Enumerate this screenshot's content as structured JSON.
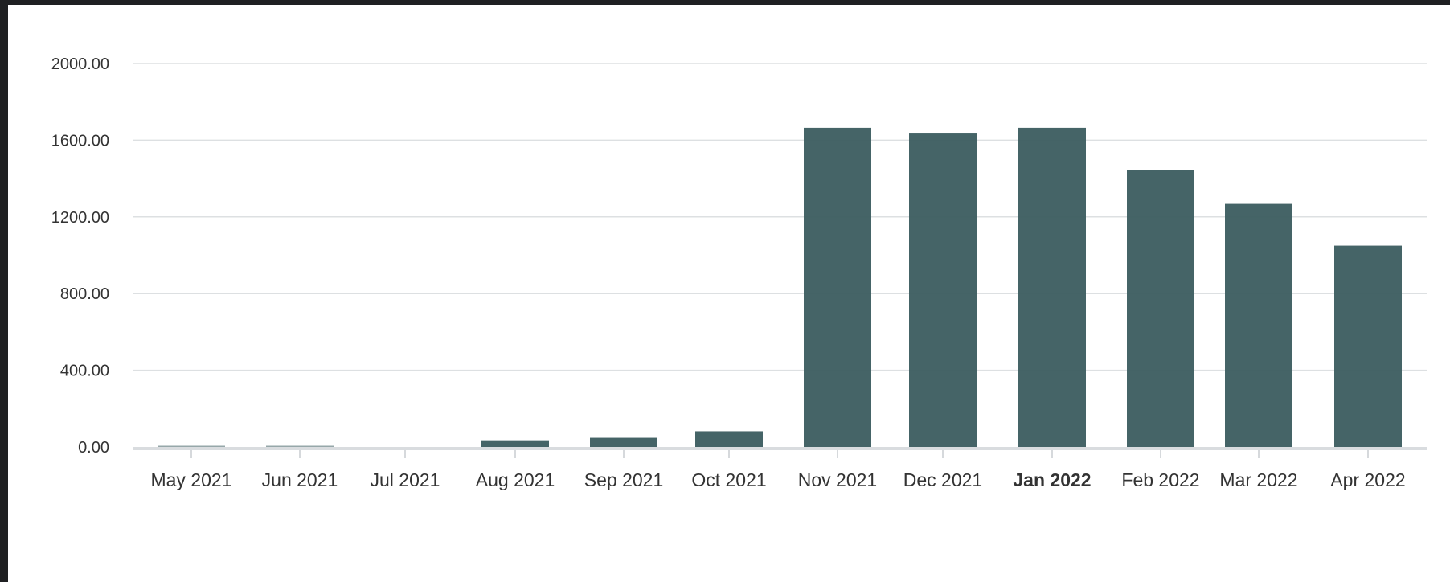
{
  "chart_data": {
    "type": "bar",
    "title": "",
    "xlabel": "",
    "ylabel": "",
    "ylim": [
      0,
      2000
    ],
    "y_ticks": [
      "0.00",
      "400.00",
      "800.00",
      "1200.00",
      "1600.00",
      "2000.00"
    ],
    "grid": true,
    "highlighted_category": "Jan 2022",
    "categories": [
      "May 2021",
      "Jun 2021",
      "Jul 2021",
      "Aug 2021",
      "Sep 2021",
      "Oct 2021",
      "Nov 2021",
      "Dec 2021",
      "Jan 2022",
      "Feb 2022",
      "Mar 2022",
      "Apr 2022"
    ],
    "values": [
      5,
      3,
      0,
      35,
      48,
      82,
      1665,
      1635,
      1665,
      1445,
      1268,
      1050
    ],
    "bar_color": "#3f5f62",
    "grid_color": "#dde0e2",
    "axis_color": "#d9dcdf"
  }
}
